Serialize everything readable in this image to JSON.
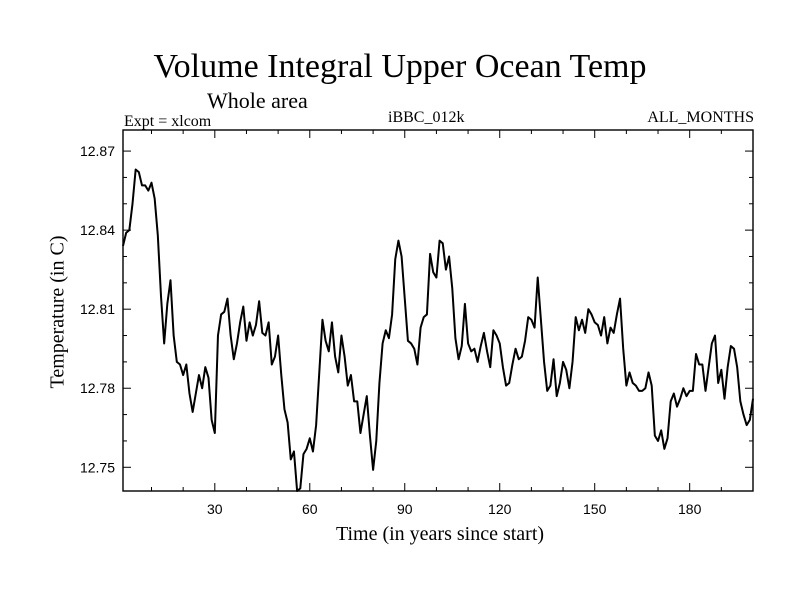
{
  "chart_data": {
    "type": "line",
    "title": "Volume Integral Upper Ocean Temp",
    "subtitle": "Whole area",
    "left_note": "Expt = xlcom",
    "center_note": "iBBC_012k",
    "right_note": "ALL_MONTHS",
    "xlabel": "Time (in years since start)",
    "ylabel": "Temperature (in C)",
    "xlim": [
      1,
      200
    ],
    "ylim": [
      12.741,
      12.878
    ],
    "xticks": [
      30,
      60,
      90,
      120,
      150,
      180
    ],
    "xtick_labels": [
      "30",
      "60",
      "90",
      "120",
      "150",
      "180"
    ],
    "yticks": [
      12.75,
      12.78,
      12.81,
      12.84,
      12.87
    ],
    "ytick_labels": [
      "12.75",
      "12.78",
      "12.81",
      "12.84",
      "12.87"
    ],
    "series": [
      {
        "name": "Temperature",
        "color": "#000000",
        "points": [
          [
            1,
            12.834
          ],
          [
            2,
            12.839
          ],
          [
            3,
            12.84
          ],
          [
            4,
            12.85
          ],
          [
            5,
            12.863
          ],
          [
            6,
            12.862
          ],
          [
            7,
            12.857
          ],
          [
            8,
            12.857
          ],
          [
            9,
            12.855
          ],
          [
            10,
            12.858
          ],
          [
            11,
            12.852
          ],
          [
            12,
            12.838
          ],
          [
            13,
            12.815
          ],
          [
            14,
            12.797
          ],
          [
            15,
            12.812
          ],
          [
            16,
            12.821
          ],
          [
            17,
            12.8
          ],
          [
            18,
            12.79
          ],
          [
            19,
            12.789
          ],
          [
            20,
            12.785
          ],
          [
            21,
            12.789
          ],
          [
            22,
            12.778
          ],
          [
            23,
            12.771
          ],
          [
            24,
            12.778
          ],
          [
            25,
            12.785
          ],
          [
            26,
            12.78
          ],
          [
            27,
            12.788
          ],
          [
            28,
            12.784
          ],
          [
            29,
            12.768
          ],
          [
            30,
            12.763
          ],
          [
            31,
            12.8
          ],
          [
            32,
            12.808
          ],
          [
            33,
            12.809
          ],
          [
            34,
            12.814
          ],
          [
            35,
            12.8
          ],
          [
            36,
            12.791
          ],
          [
            37,
            12.797
          ],
          [
            38,
            12.805
          ],
          [
            39,
            12.811
          ],
          [
            40,
            12.798
          ],
          [
            41,
            12.805
          ],
          [
            42,
            12.8
          ],
          [
            43,
            12.804
          ],
          [
            44,
            12.813
          ],
          [
            45,
            12.801
          ],
          [
            46,
            12.8
          ],
          [
            47,
            12.805
          ],
          [
            48,
            12.789
          ],
          [
            49,
            12.792
          ],
          [
            50,
            12.8
          ],
          [
            51,
            12.785
          ],
          [
            52,
            12.772
          ],
          [
            53,
            12.767
          ],
          [
            54,
            12.753
          ],
          [
            55,
            12.756
          ],
          [
            56,
            12.741
          ],
          [
            57,
            12.742
          ],
          [
            58,
            12.755
          ],
          [
            59,
            12.757
          ],
          [
            60,
            12.761
          ],
          [
            61,
            12.756
          ],
          [
            62,
            12.766
          ],
          [
            63,
            12.786
          ],
          [
            64,
            12.806
          ],
          [
            65,
            12.798
          ],
          [
            66,
            12.794
          ],
          [
            67,
            12.805
          ],
          [
            68,
            12.792
          ],
          [
            69,
            12.786
          ],
          [
            70,
            12.8
          ],
          [
            71,
            12.792
          ],
          [
            72,
            12.781
          ],
          [
            73,
            12.785
          ],
          [
            74,
            12.775
          ],
          [
            75,
            12.775
          ],
          [
            76,
            12.763
          ],
          [
            77,
            12.77
          ],
          [
            78,
            12.777
          ],
          [
            79,
            12.762
          ],
          [
            80,
            12.749
          ],
          [
            81,
            12.76
          ],
          [
            82,
            12.782
          ],
          [
            83,
            12.797
          ],
          [
            84,
            12.802
          ],
          [
            85,
            12.799
          ],
          [
            86,
            12.808
          ],
          [
            87,
            12.829
          ],
          [
            88,
            12.836
          ],
          [
            89,
            12.83
          ],
          [
            90,
            12.814
          ],
          [
            91,
            12.798
          ],
          [
            92,
            12.797
          ],
          [
            93,
            12.795
          ],
          [
            94,
            12.789
          ],
          [
            95,
            12.803
          ],
          [
            96,
            12.807
          ],
          [
            97,
            12.808
          ],
          [
            98,
            12.831
          ],
          [
            99,
            12.824
          ],
          [
            100,
            12.822
          ],
          [
            101,
            12.836
          ],
          [
            102,
            12.835
          ],
          [
            103,
            12.825
          ],
          [
            104,
            12.83
          ],
          [
            105,
            12.818
          ],
          [
            106,
            12.799
          ],
          [
            107,
            12.791
          ],
          [
            108,
            12.796
          ],
          [
            109,
            12.812
          ],
          [
            110,
            12.797
          ],
          [
            111,
            12.794
          ],
          [
            112,
            12.795
          ],
          [
            113,
            12.79
          ],
          [
            114,
            12.796
          ],
          [
            115,
            12.801
          ],
          [
            116,
            12.794
          ],
          [
            117,
            12.788
          ],
          [
            118,
            12.802
          ],
          [
            119,
            12.8
          ],
          [
            120,
            12.797
          ],
          [
            121,
            12.788
          ],
          [
            122,
            12.781
          ],
          [
            123,
            12.782
          ],
          [
            124,
            12.789
          ],
          [
            125,
            12.795
          ],
          [
            126,
            12.791
          ],
          [
            127,
            12.792
          ],
          [
            128,
            12.798
          ],
          [
            129,
            12.807
          ],
          [
            130,
            12.806
          ],
          [
            131,
            12.803
          ],
          [
            132,
            12.822
          ],
          [
            133,
            12.806
          ],
          [
            134,
            12.79
          ],
          [
            135,
            12.779
          ],
          [
            136,
            12.781
          ],
          [
            137,
            12.791
          ],
          [
            138,
            12.777
          ],
          [
            139,
            12.782
          ],
          [
            140,
            12.79
          ],
          [
            141,
            12.787
          ],
          [
            142,
            12.78
          ],
          [
            143,
            12.79
          ],
          [
            144,
            12.807
          ],
          [
            145,
            12.802
          ],
          [
            146,
            12.806
          ],
          [
            147,
            12.801
          ],
          [
            148,
            12.81
          ],
          [
            149,
            12.808
          ],
          [
            150,
            12.805
          ],
          [
            151,
            12.804
          ],
          [
            152,
            12.8
          ],
          [
            153,
            12.807
          ],
          [
            154,
            12.797
          ],
          [
            155,
            12.803
          ],
          [
            156,
            12.801
          ],
          [
            157,
            12.808
          ],
          [
            158,
            12.814
          ],
          [
            159,
            12.795
          ],
          [
            160,
            12.781
          ],
          [
            161,
            12.786
          ],
          [
            162,
            12.782
          ],
          [
            163,
            12.781
          ],
          [
            164,
            12.779
          ],
          [
            165,
            12.779
          ],
          [
            166,
            12.78
          ],
          [
            167,
            12.786
          ],
          [
            168,
            12.781
          ],
          [
            169,
            12.762
          ],
          [
            170,
            12.76
          ],
          [
            171,
            12.764
          ],
          [
            172,
            12.757
          ],
          [
            173,
            12.761
          ],
          [
            174,
            12.775
          ],
          [
            175,
            12.778
          ],
          [
            176,
            12.773
          ],
          [
            177,
            12.776
          ],
          [
            178,
            12.78
          ],
          [
            179,
            12.777
          ],
          [
            180,
            12.779
          ],
          [
            181,
            12.779
          ],
          [
            182,
            12.793
          ],
          [
            183,
            12.789
          ],
          [
            184,
            12.789
          ],
          [
            185,
            12.779
          ],
          [
            186,
            12.788
          ],
          [
            187,
            12.797
          ],
          [
            188,
            12.8
          ],
          [
            189,
            12.782
          ],
          [
            190,
            12.787
          ],
          [
            191,
            12.776
          ],
          [
            192,
            12.788
          ],
          [
            193,
            12.796
          ],
          [
            194,
            12.795
          ],
          [
            195,
            12.788
          ],
          [
            196,
            12.775
          ],
          [
            197,
            12.77
          ],
          [
            198,
            12.766
          ],
          [
            199,
            12.768
          ],
          [
            200,
            12.776
          ]
        ]
      }
    ]
  }
}
